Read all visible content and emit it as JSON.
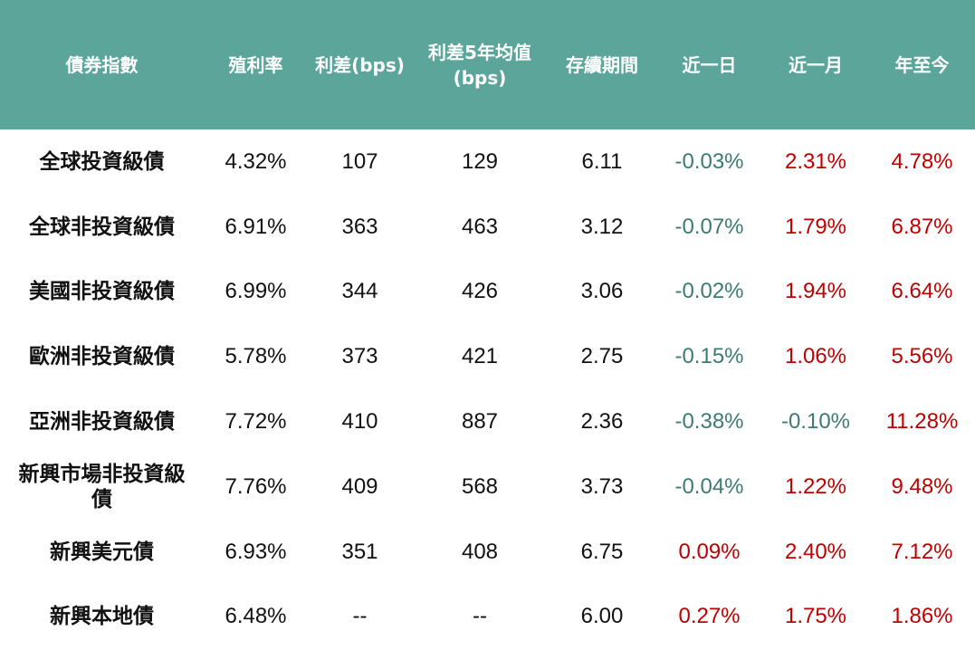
{
  "table": {
    "header": [
      "債券指數",
      "殖利率",
      "利差(bps)",
      "利差5年均值 (bps)",
      "存續期間",
      "近一日",
      "近一月",
      "年至今"
    ],
    "rows": [
      [
        "全球投資級債",
        "4.32%",
        "107",
        "129",
        "6.11",
        "-0.03%",
        "2.31%",
        "4.78%"
      ],
      [
        "全球非投資級債",
        "6.91%",
        "363",
        "463",
        "3.12",
        "-0.07%",
        "1.79%",
        "6.87%"
      ],
      [
        "美國非投資級債",
        "6.99%",
        "344",
        "426",
        "3.06",
        "-0.02%",
        "1.94%",
        "6.64%"
      ],
      [
        "歐洲非投資級債",
        "5.78%",
        "373",
        "421",
        "2.75",
        "-0.15%",
        "1.06%",
        "5.56%"
      ],
      [
        "亞洲非投資級債",
        "7.72%",
        "410",
        "887",
        "2.36",
        "-0.38%",
        "-0.10%",
        "11.28%"
      ],
      [
        "新興市場非投資級債",
        "7.76%",
        "409",
        "568",
        "3.73",
        "-0.04%",
        "1.22%",
        "9.48%"
      ],
      [
        "新興美元債",
        "6.93%",
        "351",
        "408",
        "6.75",
        "0.09%",
        "2.40%",
        "7.12%"
      ],
      [
        "新興本地債",
        "6.48%",
        "--",
        "--",
        "6.00",
        "0.27%",
        "1.75%",
        "1.86%"
      ]
    ]
  }
}
